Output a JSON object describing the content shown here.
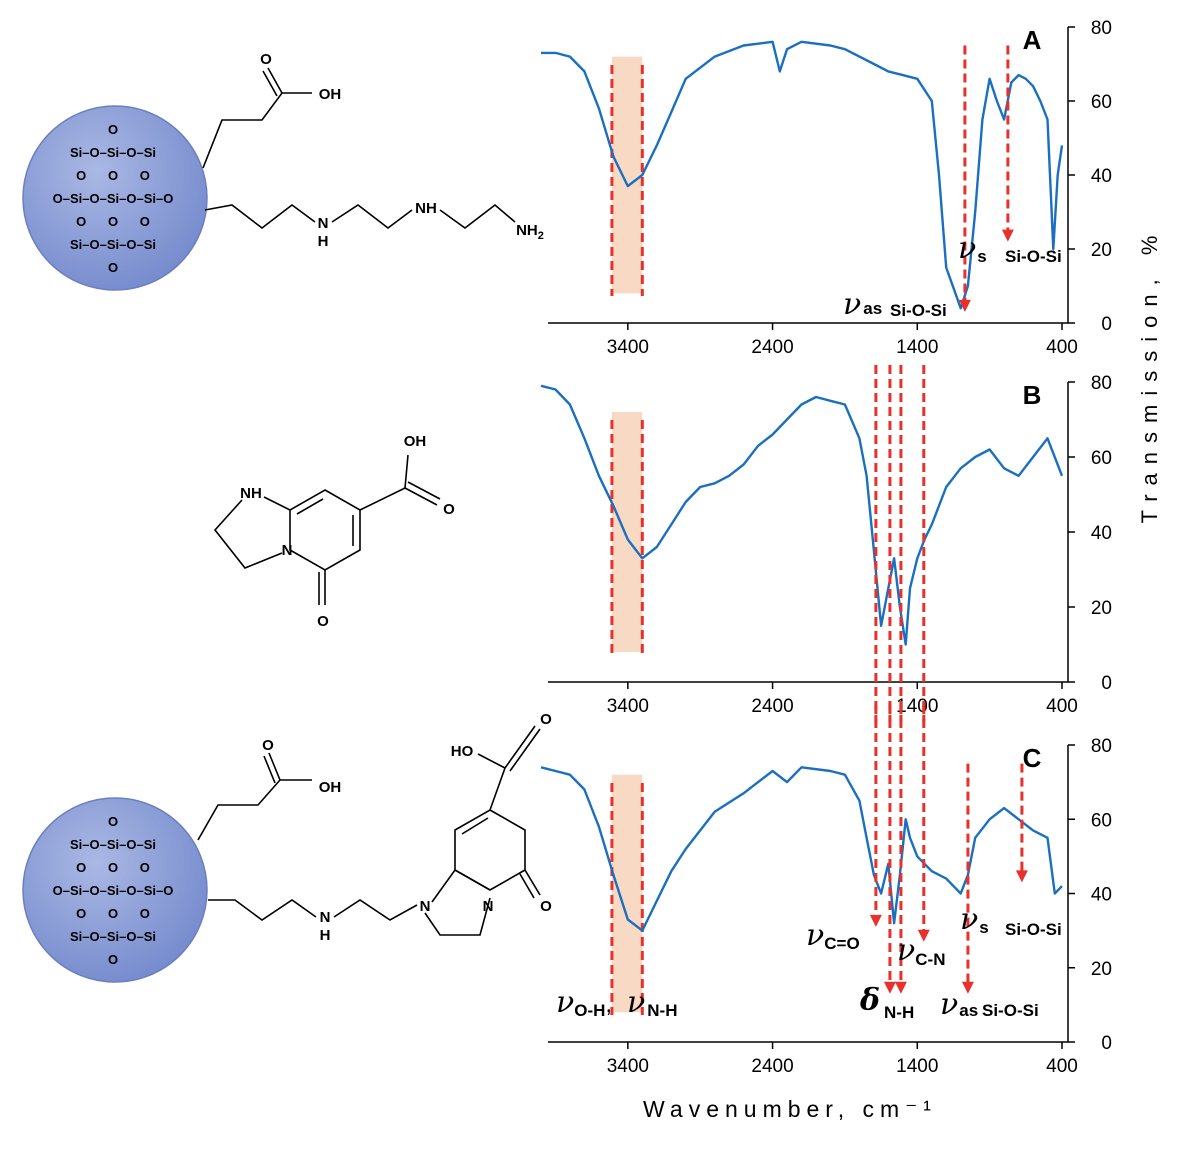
{
  "chart_data": [
    {
      "type": "line",
      "label": "A",
      "xlim": [
        4000,
        400
      ],
      "xticks": [
        3400,
        2400,
        1400,
        400
      ],
      "ylim": [
        0,
        80
      ],
      "yticks": [
        0,
        20,
        40,
        60,
        80
      ],
      "band": [
        3510,
        3300
      ],
      "x": [
        4000,
        3900,
        3800,
        3700,
        3600,
        3500,
        3400,
        3300,
        3200,
        3100,
        3000,
        2800,
        2600,
        2400,
        2350,
        2300,
        2200,
        2000,
        1900,
        1800,
        1700,
        1600,
        1500,
        1400,
        1300,
        1250,
        1200,
        1100,
        1050,
        1000,
        950,
        900,
        850,
        800,
        750,
        700,
        650,
        600,
        550,
        500,
        460,
        430,
        400
      ],
      "series": [
        {
          "color": "#1a6fc0",
          "values": [
            73,
            73,
            72,
            68,
            58,
            45,
            37,
            40,
            48,
            57,
            66,
            72,
            75,
            76,
            68,
            74,
            76,
            75,
            74,
            72,
            70,
            68,
            67,
            66,
            60,
            40,
            15,
            4,
            10,
            30,
            55,
            66,
            60,
            55,
            65,
            67,
            66,
            64,
            60,
            55,
            20,
            40,
            48
          ]
        }
      ],
      "markers": [
        {
          "x": 1071,
          "y": 3
        },
        {
          "x": 774,
          "y": 22
        }
      ],
      "annotations": [
        {
          "symbol": "ν",
          "sub": "as",
          "text": "Si-O-Si"
        },
        {
          "symbol": "ν",
          "sub": "s",
          "text": "Si-O-Si"
        }
      ]
    },
    {
      "type": "line",
      "label": "B",
      "xlim": [
        4000,
        400
      ],
      "xticks": [
        3400,
        2400,
        1400,
        400
      ],
      "ylim": [
        0,
        80
      ],
      "yticks": [
        0,
        20,
        40,
        60,
        80
      ],
      "band": [
        3510,
        3300
      ],
      "x": [
        4000,
        3900,
        3800,
        3700,
        3600,
        3500,
        3400,
        3300,
        3200,
        3100,
        3000,
        2900,
        2800,
        2700,
        2600,
        2500,
        2400,
        2300,
        2200,
        2100,
        2000,
        1900,
        1800,
        1750,
        1700,
        1650,
        1600,
        1560,
        1520,
        1480,
        1450,
        1400,
        1350,
        1300,
        1200,
        1100,
        1000,
        900,
        800,
        700,
        600,
        500,
        400
      ],
      "series": [
        {
          "color": "#1a6fc0",
          "values": [
            79,
            78,
            74,
            65,
            55,
            47,
            38,
            33,
            36,
            42,
            48,
            52,
            53,
            55,
            58,
            63,
            66,
            70,
            74,
            76,
            75,
            74,
            65,
            55,
            35,
            15,
            25,
            33,
            20,
            10,
            25,
            33,
            38,
            42,
            52,
            57,
            60,
            62,
            57,
            55,
            60,
            65,
            55
          ]
        }
      ],
      "guides": [
        1686,
        1589,
        1513,
        1355
      ]
    },
    {
      "type": "line",
      "label": "C",
      "xlim": [
        4000,
        400
      ],
      "xticks": [
        3400,
        2400,
        1400,
        400
      ],
      "ylim": [
        0,
        80
      ],
      "yticks": [
        0,
        20,
        40,
        60,
        80
      ],
      "band": [
        3510,
        3300
      ],
      "x": [
        4000,
        3900,
        3800,
        3700,
        3600,
        3500,
        3400,
        3300,
        3200,
        3100,
        3000,
        2900,
        2800,
        2600,
        2500,
        2400,
        2300,
        2200,
        2000,
        1900,
        1800,
        1750,
        1700,
        1650,
        1600,
        1560,
        1520,
        1480,
        1450,
        1400,
        1350,
        1300,
        1200,
        1100,
        1050,
        1000,
        900,
        800,
        700,
        600,
        500,
        450,
        400
      ],
      "series": [
        {
          "color": "#1a6fc0",
          "values": [
            74,
            73,
            72,
            68,
            58,
            45,
            33,
            30,
            38,
            46,
            52,
            57,
            62,
            67,
            70,
            73,
            70,
            74,
            73,
            72,
            65,
            55,
            45,
            40,
            48,
            32,
            45,
            60,
            55,
            50,
            48,
            46,
            44,
            40,
            45,
            55,
            60,
            63,
            60,
            57,
            55,
            40,
            42
          ]
        }
      ],
      "markers": [
        {
          "x": 1686,
          "y": 31
        },
        {
          "x": 1589,
          "y": 13
        },
        {
          "x": 1513,
          "y": 13
        },
        {
          "x": 1355,
          "y": 27
        },
        {
          "x": 1050,
          "y": 13
        },
        {
          "x": 677,
          "y": 43
        }
      ],
      "annotations": [
        {
          "symbol": "ν",
          "sub": "O-H",
          "text": ","
        },
        {
          "symbol": "ν",
          "sub": "N-H"
        },
        {
          "symbol": "ν",
          "sub": "C=O"
        },
        {
          "symbol": "δ",
          "sub": "N-H"
        },
        {
          "symbol": "ν",
          "sub": "C-N"
        },
        {
          "symbol": "ν",
          "sub": "s",
          "text": "Si-O-Si"
        },
        {
          "symbol": "ν",
          "sub": "as",
          "text": "Si-O-Si"
        }
      ],
      "xlabel": "Wavenumber, cm⁻¹",
      "ylabel": "Transmission, %"
    }
  ],
  "silica": [
    "O",
    "Si–O–Si–O–Si",
    "O      O      O",
    "O–Si–O–Si–O–Si–O",
    "O      O      O",
    "Si–O–Si–O–Si",
    "O"
  ],
  "structures": [
    {
      "labels": [
        "O",
        "OH",
        "N",
        "H",
        "NH",
        "NH",
        "2"
      ]
    },
    {
      "labels": [
        "OH",
        "O",
        "NH",
        "N",
        "O"
      ]
    },
    {
      "labels": [
        "O",
        "OH",
        "N",
        "H",
        "N",
        "N",
        "O",
        "HO",
        "O"
      ]
    }
  ]
}
